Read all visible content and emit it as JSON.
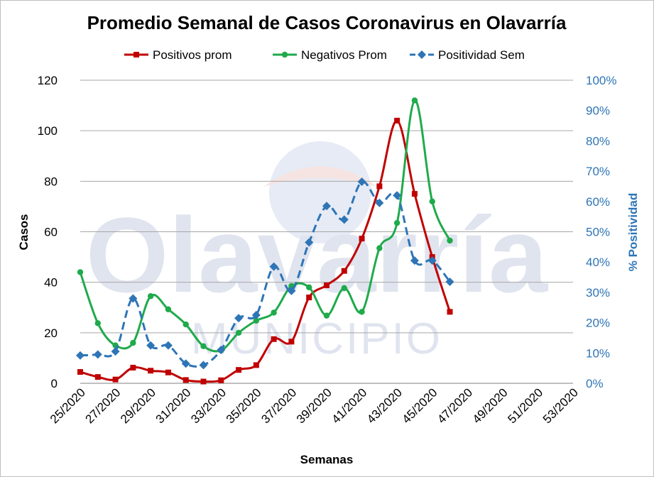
{
  "chart_data": {
    "type": "line",
    "title": "Promedio Semanal de Casos Coronavirus en Olavarría",
    "xlabel": "Semanas",
    "ylabel": "Casos",
    "y2label": "% Positividad",
    "ylim": [
      0,
      120
    ],
    "y2lim": [
      0,
      100
    ],
    "yticks": [
      "0",
      "20",
      "40",
      "60",
      "80",
      "100",
      "120"
    ],
    "y2ticks": [
      "0%",
      "10%",
      "20%",
      "30%",
      "40%",
      "50%",
      "60%",
      "70%",
      "80%",
      "90%",
      "100%"
    ],
    "xtick_labels": [
      "25/2020",
      "27/2020",
      "29/2020",
      "31/2020",
      "33/2020",
      "35/2020",
      "37/2020",
      "39/2020",
      "41/2020",
      "43/2020",
      "45/2020",
      "47/2020",
      "49/2020",
      "51/2020",
      "53/2020"
    ],
    "x_range": [
      25,
      53
    ],
    "grid": true,
    "legend_position": "top",
    "watermark": {
      "main": "Olavarría",
      "sub": "MUNICIPIO"
    },
    "series": [
      {
        "name": "Positivos prom",
        "axis": "left",
        "color": "#c00000",
        "marker": "square",
        "dash": false,
        "x": [
          25,
          26,
          27,
          28,
          29,
          30,
          31,
          32,
          33,
          34,
          35,
          36,
          37,
          38,
          39,
          40,
          41,
          42,
          43,
          44,
          45,
          46
        ],
        "values": [
          4.5,
          2.5,
          1.5,
          6.2,
          5.0,
          4.3,
          1.3,
          0.7,
          1.2,
          5.3,
          7.2,
          17.5,
          16.5,
          34.0,
          38.8,
          44.5,
          57.3,
          78.0,
          104.0,
          75.0,
          50.0,
          28.3
        ]
      },
      {
        "name": "Negativos Prom",
        "axis": "left",
        "color": "#1faa4b",
        "marker": "circle",
        "dash": false,
        "x": [
          25,
          26,
          27,
          28,
          29,
          30,
          31,
          32,
          33,
          34,
          35,
          36,
          37,
          38,
          39,
          40,
          41,
          42,
          43,
          44,
          45,
          46
        ],
        "values": [
          44.0,
          23.8,
          15.0,
          16.0,
          34.5,
          29.3,
          23.3,
          14.7,
          13.0,
          20.0,
          24.8,
          28.0,
          38.5,
          38.0,
          26.8,
          37.7,
          28.3,
          53.5,
          63.5,
          112.0,
          72.0,
          56.5
        ]
      },
      {
        "name": "Positividad Sem",
        "axis": "right",
        "color": "#2e75b6",
        "marker": "diamond",
        "dash": true,
        "x": [
          25,
          26,
          27,
          28,
          29,
          30,
          31,
          32,
          33,
          34,
          35,
          36,
          37,
          38,
          39,
          40,
          41,
          42,
          43,
          44,
          45,
          46
        ],
        "values": [
          9.2,
          9.5,
          10.5,
          28.0,
          12.5,
          12.5,
          6.5,
          6.0,
          11.0,
          21.5,
          22.5,
          38.5,
          30.5,
          46.5,
          58.5,
          54.0,
          66.5,
          59.5,
          62.0,
          40.5,
          40.5,
          33.5
        ]
      }
    ]
  }
}
